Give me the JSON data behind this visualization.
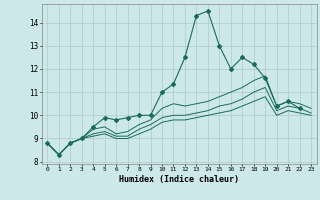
{
  "xlabel": "Humidex (Indice chaleur)",
  "bg_color": "#cce8e8",
  "grid_color": "#b0c8c8",
  "line_color": "#1a6b5a",
  "xlim": [
    -0.5,
    23.5
  ],
  "ylim": [
    7.9,
    14.8
  ],
  "yticks": [
    8,
    9,
    10,
    11,
    12,
    13,
    14
  ],
  "xticks": [
    0,
    1,
    2,
    3,
    4,
    5,
    6,
    7,
    8,
    9,
    10,
    11,
    12,
    13,
    14,
    15,
    16,
    17,
    18,
    19,
    20,
    21,
    22,
    23
  ],
  "series": [
    [
      8.8,
      8.3,
      8.8,
      9.0,
      9.5,
      9.9,
      9.8,
      9.9,
      10.0,
      10.0,
      11.0,
      11.35,
      12.5,
      14.3,
      14.5,
      13.0,
      12.0,
      12.5,
      12.2,
      11.6,
      10.4,
      10.6,
      10.3,
      null
    ],
    [
      8.8,
      8.3,
      8.8,
      9.0,
      9.4,
      9.5,
      9.2,
      9.3,
      9.6,
      9.8,
      10.3,
      10.5,
      10.4,
      10.5,
      10.6,
      10.8,
      11.0,
      11.2,
      11.5,
      11.7,
      10.4,
      10.6,
      10.5,
      10.3
    ],
    [
      8.8,
      8.3,
      8.8,
      9.0,
      9.2,
      9.3,
      9.1,
      9.1,
      9.4,
      9.6,
      9.9,
      10.0,
      10.0,
      10.1,
      10.2,
      10.4,
      10.5,
      10.7,
      11.0,
      11.2,
      10.2,
      10.4,
      10.3,
      10.1
    ],
    [
      8.8,
      8.3,
      8.8,
      9.0,
      9.1,
      9.2,
      9.0,
      9.0,
      9.2,
      9.4,
      9.7,
      9.8,
      9.8,
      9.9,
      10.0,
      10.1,
      10.2,
      10.4,
      10.6,
      10.8,
      10.0,
      10.2,
      10.1,
      10.0
    ]
  ]
}
